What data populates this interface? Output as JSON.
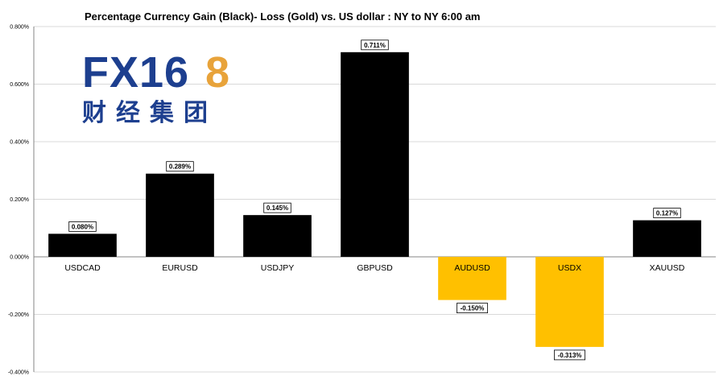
{
  "logo": {
    "text_main": "FX16",
    "text_accent": "8",
    "text_cn": "财经集团",
    "main_color": "#1d3f8f",
    "accent_color": "#e8a33a"
  },
  "chart_data": {
    "type": "bar",
    "title": "Percentage Currency  Gain (Black)- Loss (Gold)  vs. US dollar :  NY  to  NY 6:00 am",
    "xlabel": "",
    "ylabel": "",
    "ylim": [
      -0.4,
      0.8
    ],
    "yticks": [
      0.8,
      0.6,
      0.4,
      0.2,
      0.0,
      -0.2,
      -0.4
    ],
    "ytick_labels": [
      "0.800%",
      "0.600%",
      "0.400%",
      "0.200%",
      "0.000%",
      "-0.200%",
      "-0.400%"
    ],
    "grid": true,
    "gain_color": "#000000",
    "loss_color": "#ffc000",
    "categories": [
      "USDCAD",
      "EURUSD",
      "USDJPY",
      "GBPUSD",
      "AUDUSD",
      "USDX",
      "XAUUSD"
    ],
    "values": [
      0.08,
      0.289,
      0.145,
      0.711,
      -0.15,
      -0.313,
      0.127
    ],
    "value_labels": [
      "0.080%",
      "0.289%",
      "0.145%",
      "0.711%",
      "-0.150%",
      "-0.313%",
      "0.127%"
    ]
  }
}
